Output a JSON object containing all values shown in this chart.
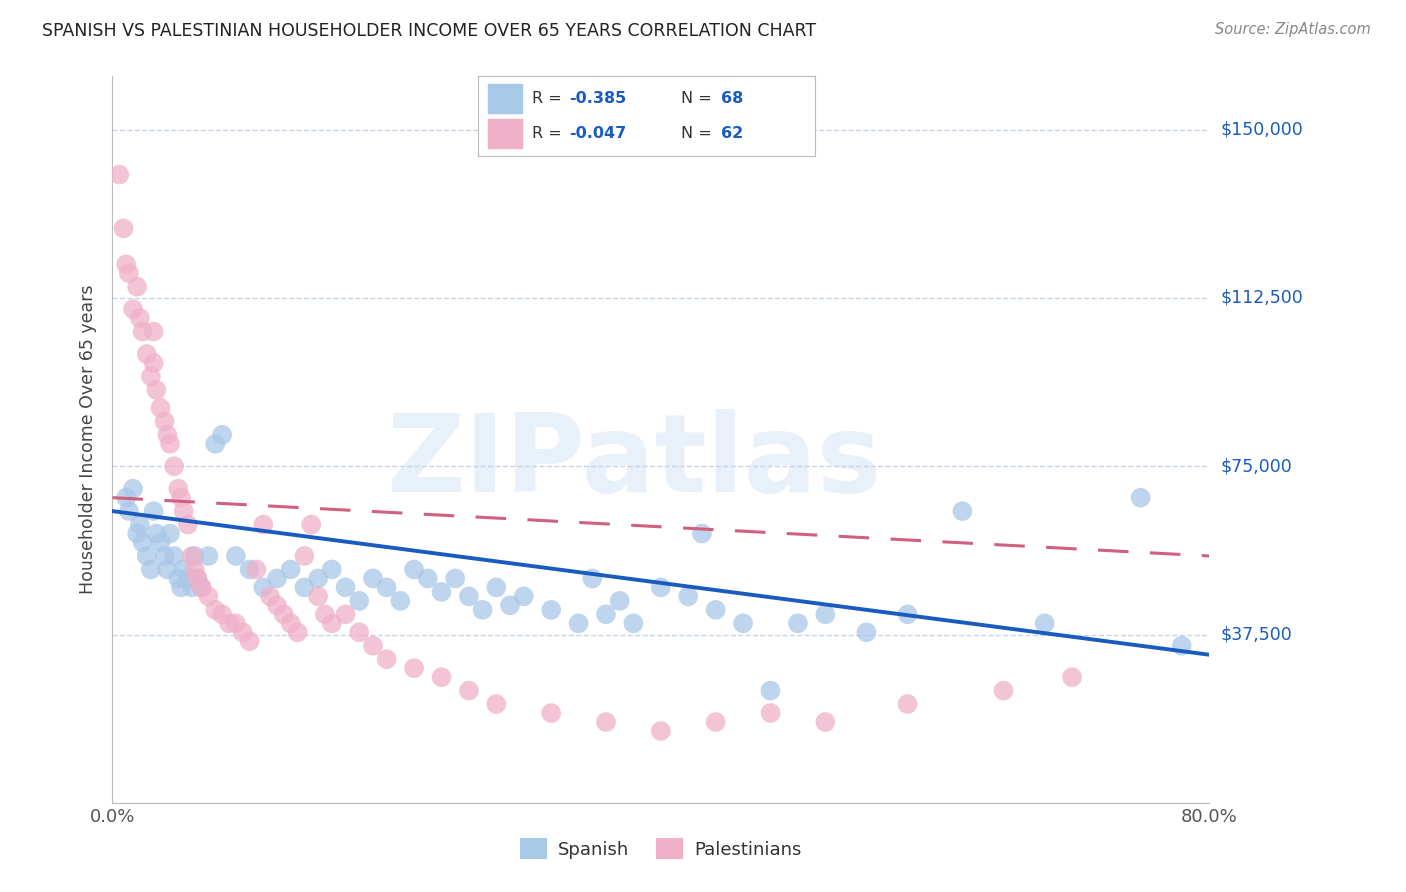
{
  "title": "SPANISH VS PALESTINIAN HOUSEHOLDER INCOME OVER 65 YEARS CORRELATION CHART",
  "source": "Source: ZipAtlas.com",
  "ylabel": "Householder Income Over 65 years",
  "xlim": [
    0.0,
    80.0
  ],
  "ylim": [
    0,
    162000
  ],
  "yticks": [
    0,
    37500,
    75000,
    112500,
    150000
  ],
  "ytick_labels": [
    "",
    "$37,500",
    "$75,000",
    "$112,500",
    "$150,000"
  ],
  "watermark": "ZIPatlas",
  "spanish_color": "#a8c8e8",
  "palestinian_color": "#f0b0c8",
  "spanish_line_color": "#1a5bbf",
  "palestinian_line_color": "#d06080",
  "background_color": "#ffffff",
  "grid_color": "#c8d4e8",
  "spanish_r": -0.385,
  "spanish_n": 68,
  "palestinian_r": -0.047,
  "palestinian_n": 62,
  "spanish_x": [
    1.0,
    1.2,
    1.5,
    1.8,
    2.0,
    2.2,
    2.5,
    2.8,
    3.0,
    3.2,
    3.5,
    3.8,
    4.0,
    4.2,
    4.5,
    4.8,
    5.0,
    5.2,
    5.5,
    5.8,
    6.0,
    6.2,
    6.5,
    7.0,
    7.5,
    8.0,
    9.0,
    10.0,
    11.0,
    12.0,
    13.0,
    14.0,
    15.0,
    16.0,
    17.0,
    18.0,
    19.0,
    20.0,
    21.0,
    22.0,
    23.0,
    24.0,
    25.0,
    26.0,
    27.0,
    28.0,
    29.0,
    30.0,
    32.0,
    34.0,
    35.0,
    36.0,
    37.0,
    38.0,
    40.0,
    42.0,
    43.0,
    44.0,
    46.0,
    48.0,
    50.0,
    52.0,
    55.0,
    58.0,
    62.0,
    68.0,
    75.0,
    78.0
  ],
  "spanish_y": [
    68000,
    65000,
    70000,
    60000,
    62000,
    58000,
    55000,
    52000,
    65000,
    60000,
    58000,
    55000,
    52000,
    60000,
    55000,
    50000,
    48000,
    52000,
    50000,
    48000,
    55000,
    50000,
    48000,
    55000,
    80000,
    82000,
    55000,
    52000,
    48000,
    50000,
    52000,
    48000,
    50000,
    52000,
    48000,
    45000,
    50000,
    48000,
    45000,
    52000,
    50000,
    47000,
    50000,
    46000,
    43000,
    48000,
    44000,
    46000,
    43000,
    40000,
    50000,
    42000,
    45000,
    40000,
    48000,
    46000,
    60000,
    43000,
    40000,
    25000,
    40000,
    42000,
    38000,
    42000,
    65000,
    40000,
    68000,
    35000
  ],
  "palestinian_x": [
    0.5,
    0.8,
    1.0,
    1.2,
    1.5,
    1.8,
    2.0,
    2.2,
    2.5,
    2.8,
    3.0,
    3.0,
    3.2,
    3.5,
    3.8,
    4.0,
    4.2,
    4.5,
    4.8,
    5.0,
    5.2,
    5.5,
    5.8,
    6.0,
    6.2,
    6.5,
    7.0,
    7.5,
    8.0,
    8.5,
    9.0,
    9.5,
    10.0,
    10.5,
    11.0,
    11.5,
    12.0,
    12.5,
    13.0,
    13.5,
    14.0,
    14.5,
    15.0,
    15.5,
    16.0,
    17.0,
    18.0,
    19.0,
    20.0,
    22.0,
    24.0,
    26.0,
    28.0,
    32.0,
    36.0,
    40.0,
    44.0,
    48.0,
    52.0,
    58.0,
    65.0,
    70.0
  ],
  "palestinian_y": [
    140000,
    128000,
    120000,
    118000,
    110000,
    115000,
    108000,
    105000,
    100000,
    95000,
    105000,
    98000,
    92000,
    88000,
    85000,
    82000,
    80000,
    75000,
    70000,
    68000,
    65000,
    62000,
    55000,
    52000,
    50000,
    48000,
    46000,
    43000,
    42000,
    40000,
    40000,
    38000,
    36000,
    52000,
    62000,
    46000,
    44000,
    42000,
    40000,
    38000,
    55000,
    62000,
    46000,
    42000,
    40000,
    42000,
    38000,
    35000,
    32000,
    30000,
    28000,
    25000,
    22000,
    20000,
    18000,
    16000,
    18000,
    20000,
    18000,
    22000,
    25000,
    28000
  ]
}
